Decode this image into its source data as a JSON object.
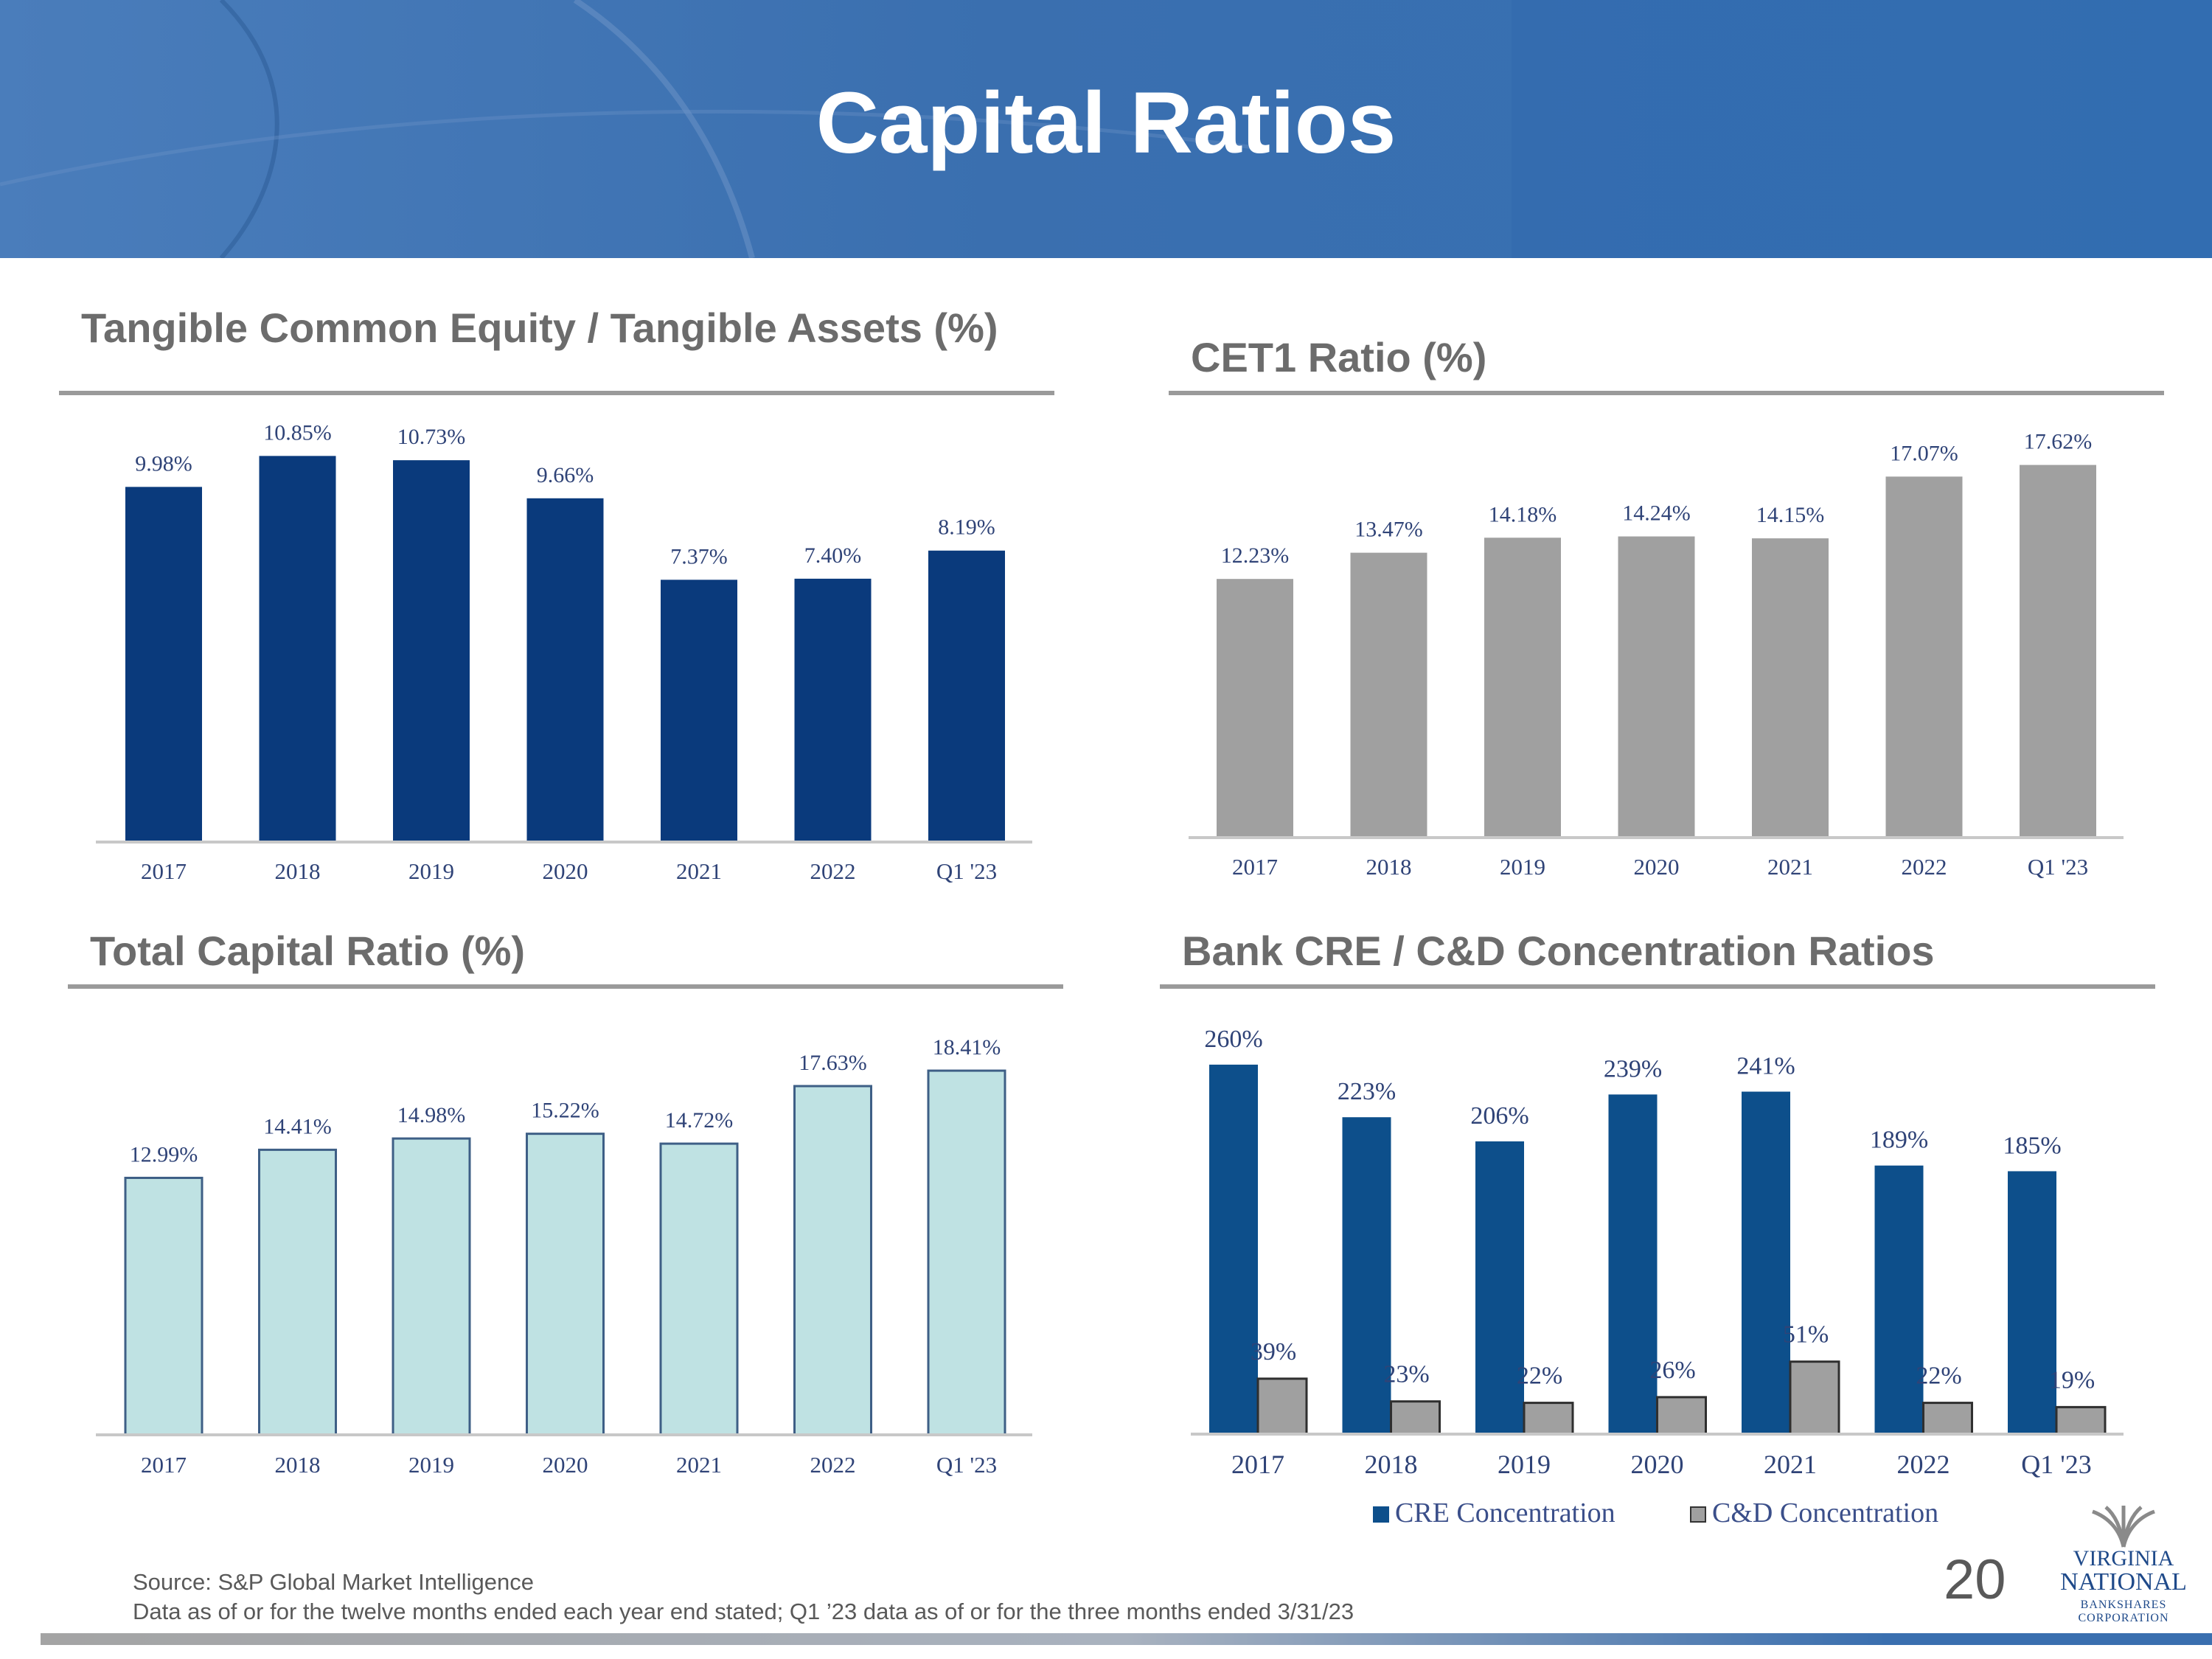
{
  "header": {
    "title": "Capital Ratios"
  },
  "colors": {
    "tce_bar": "#0a3a7c",
    "cet1_bar": "#a0a0a0",
    "total_bar": "#bfe2e3",
    "total_bar_stroke": "#3e5f86",
    "cre_bar": "#0d4f8b",
    "cd_bar": "#a0a0a0",
    "label_text": "#2f4377"
  },
  "chart_data": [
    {
      "id": "tce",
      "type": "bar",
      "title": "Tangible Common Equity / Tangible Assets (%)",
      "categories": [
        "2017",
        "2018",
        "2019",
        "2020",
        "2021",
        "2022",
        "Q1 '23"
      ],
      "values": [
        9.98,
        10.85,
        10.73,
        9.66,
        7.37,
        7.4,
        8.19
      ],
      "labels": [
        "9.98%",
        "10.85%",
        "10.73%",
        "9.66%",
        "7.37%",
        "7.40%",
        "8.19%"
      ],
      "ylim": [
        0,
        11.5
      ]
    },
    {
      "id": "cet1",
      "type": "bar",
      "title": "CET1 Ratio (%)",
      "categories": [
        "2017",
        "2018",
        "2019",
        "2020",
        "2021",
        "2022",
        "Q1 '23"
      ],
      "values": [
        12.23,
        13.47,
        14.18,
        14.24,
        14.15,
        17.07,
        17.62
      ],
      "labels": [
        "12.23%",
        "13.47%",
        "14.18%",
        "14.24%",
        "14.15%",
        "17.07%",
        "17.62%"
      ],
      "ylim": [
        0,
        19
      ]
    },
    {
      "id": "total",
      "type": "bar",
      "title": "Total Capital Ratio (%)",
      "categories": [
        "2017",
        "2018",
        "2019",
        "2020",
        "2021",
        "2022",
        "Q1 '23"
      ],
      "values": [
        12.99,
        14.41,
        14.98,
        15.22,
        14.72,
        17.63,
        18.41
      ],
      "labels": [
        "12.99%",
        "14.41%",
        "14.98%",
        "15.22%",
        "14.72%",
        "17.63%",
        "18.41%"
      ],
      "ylim": [
        0,
        20.5
      ]
    },
    {
      "id": "cre",
      "type": "bar",
      "title": "Bank CRE / C&D Concentration Ratios",
      "categories": [
        "2017",
        "2018",
        "2019",
        "2020",
        "2021",
        "2022",
        "Q1 '23"
      ],
      "series": [
        {
          "name": "CRE Concentration",
          "values": [
            260,
            223,
            206,
            239,
            241,
            189,
            185
          ],
          "labels": [
            "260%",
            "223%",
            "206%",
            "239%",
            "241%",
            "189%",
            "185%"
          ]
        },
        {
          "name": "C&D Concentration",
          "values": [
            39,
            23,
            22,
            26,
            51,
            22,
            19
          ],
          "labels": [
            "39%",
            "23%",
            "22%",
            "26%",
            "51%",
            "22%",
            "19%"
          ]
        }
      ],
      "legend": "bottom",
      "ylim": [
        0,
        275
      ]
    }
  ],
  "footer": {
    "source": "Source: S&P Global Market Intelligence",
    "note": "Data as of or for the twelve months ended each year end stated; Q1 ’23 data as of or for the three months ended 3/31/23",
    "page_number": "20"
  },
  "logo": {
    "line1": "VIRGINIA",
    "line2": "NATIONAL",
    "line3": "BANKSHARES",
    "line4": "CORPORATION"
  }
}
